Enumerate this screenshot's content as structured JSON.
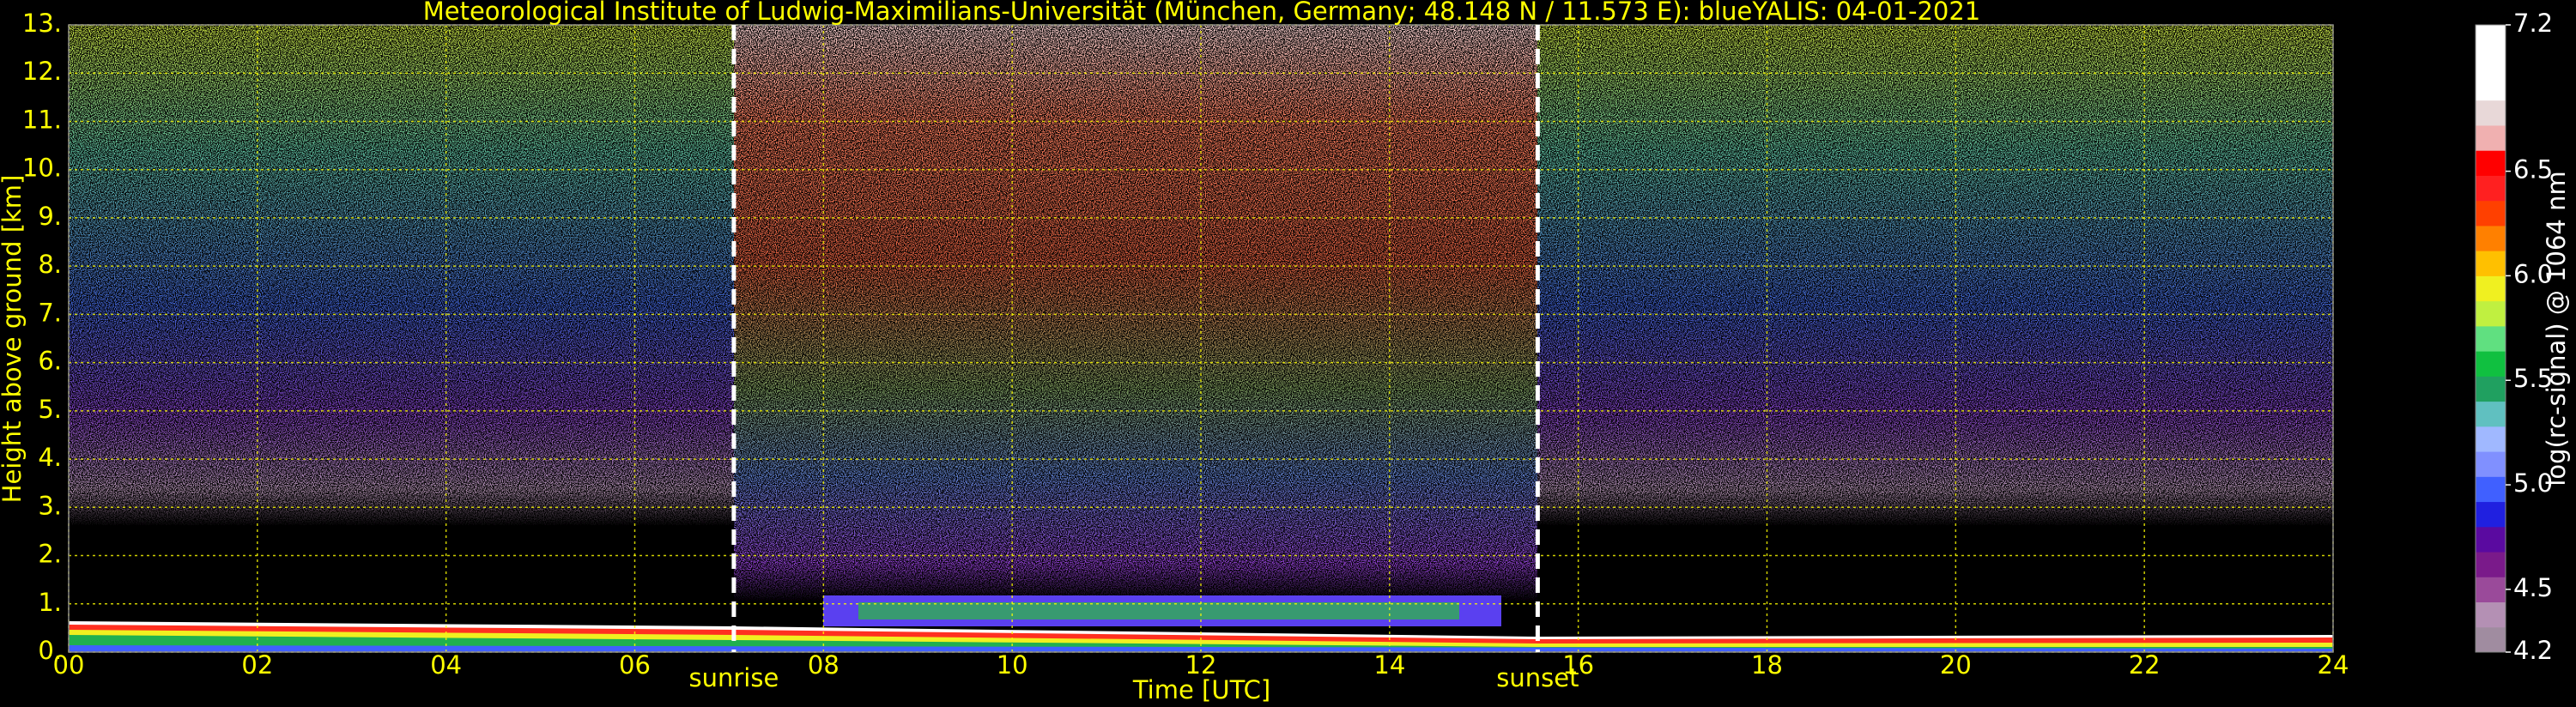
{
  "chart_data": {
    "type": "heatmap",
    "title": "Meteorological Institute of Ludwig-Maximilians-Universität (München, Germany; 48.148 N / 11.573 E):    blueYALIS: 04-01-2021",
    "xlabel": "Time [UTC]",
    "ylabel": "Height above ground [km]",
    "xlim": [
      0,
      24
    ],
    "xticks": [
      {
        "value": 0,
        "label": "00"
      },
      {
        "value": 2,
        "label": "02"
      },
      {
        "value": 4,
        "label": "04"
      },
      {
        "value": 6,
        "label": "06"
      },
      {
        "value": 8,
        "label": "08"
      },
      10,
      12,
      14,
      16,
      18,
      20,
      22,
      24
    ],
    "ylim": [
      0,
      13
    ],
    "yticks": [
      {
        "value": 0,
        "label": "0."
      },
      {
        "value": 1,
        "label": "1."
      },
      {
        "value": 2,
        "label": "2."
      },
      {
        "value": 3,
        "label": "3."
      },
      {
        "value": 4,
        "label": "4."
      },
      {
        "value": 5,
        "label": "5."
      },
      {
        "value": 6,
        "label": "6."
      },
      {
        "value": 7,
        "label": "7."
      },
      {
        "value": 8,
        "label": "8."
      },
      {
        "value": 9,
        "label": "9."
      },
      {
        "value": 10,
        "label": "10."
      },
      {
        "value": 11,
        "label": "11."
      },
      {
        "value": 12,
        "label": "12."
      },
      {
        "value": 13,
        "label": "13."
      }
    ],
    "grid": true,
    "grid_color": "#ffff00",
    "annotations": [
      {
        "label": "sunrise",
        "x": 7.05
      },
      {
        "label": "sunset",
        "x": 15.57
      }
    ],
    "colorbar": {
      "label": "log(rc-signal) @ 1064 nm",
      "lim": [
        4.2,
        7.2
      ],
      "ticks": [
        4.2,
        4.5,
        {
          "value": 5,
          "label": "5.0"
        },
        5.5,
        {
          "value": 6,
          "label": "6.0"
        },
        6.5,
        7.2
      ],
      "colors": [
        "#a08ca0",
        "#b490b4",
        "#9a4a9a",
        "#7a1a8a",
        "#5a0aa0",
        "#2020e0",
        "#4060ff",
        "#8090ff",
        "#a0b8ff",
        "#60c0c0",
        "#20a060",
        "#10c040",
        "#60e080",
        "#c0f040",
        "#f0f020",
        "#ffc000",
        "#ff8000",
        "#ff4000",
        "#ff2020",
        "#ff0000",
        "#f0b0b0",
        "#e8d8d8",
        "#ffffff",
        "#ffffff",
        "#ffffff"
      ]
    }
  }
}
